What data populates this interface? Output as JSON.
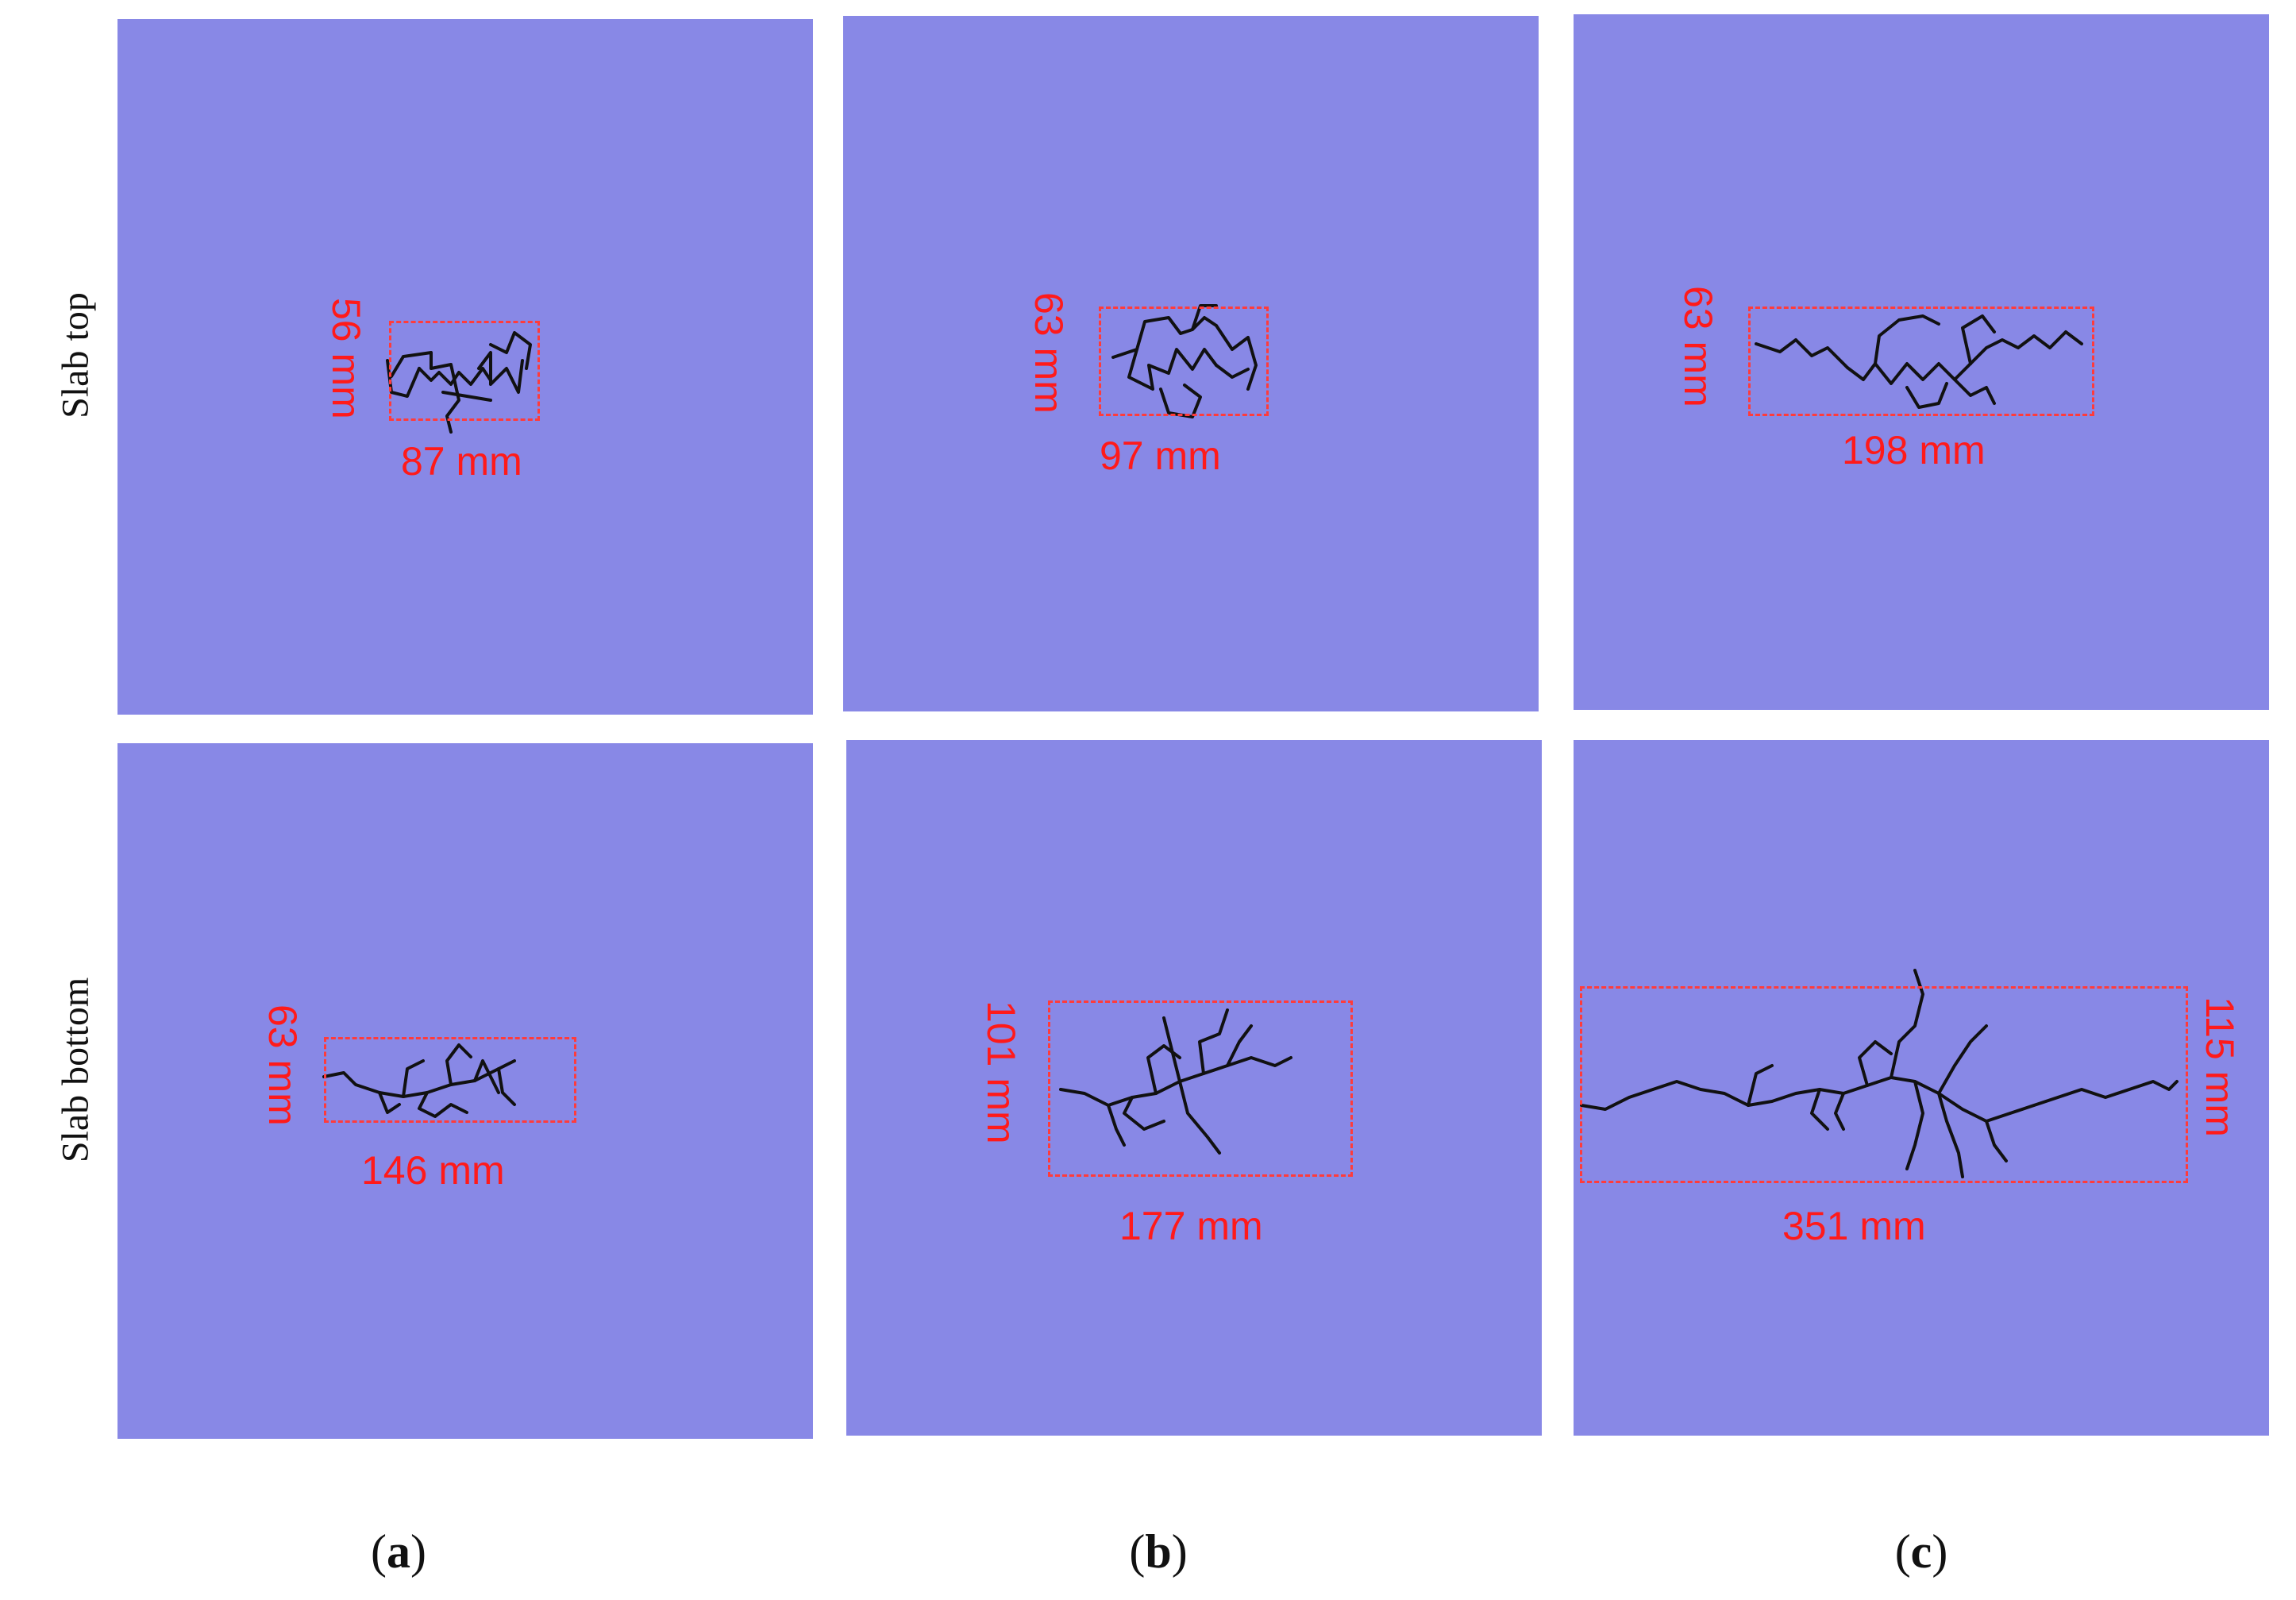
{
  "figure": {
    "row_labels": {
      "top": "Slab top",
      "bottom": "Slab bottom"
    },
    "column_labels": [
      {
        "letter": "a",
        "label": "(a)"
      },
      {
        "letter": "b",
        "label": "(b)"
      },
      {
        "letter": "c",
        "label": "(c)"
      }
    ],
    "panels": {
      "a_top": {
        "width_label": "87 mm",
        "height_label": "56 mm"
      },
      "b_top": {
        "width_label": "97 mm",
        "height_label": "63 mm"
      },
      "c_top": {
        "width_label": "198 mm",
        "height_label": "63 mm"
      },
      "a_bottom": {
        "width_label": "146 mm",
        "height_label": "63 mm"
      },
      "b_bottom": {
        "width_label": "177 mm",
        "height_label": "101 mm"
      },
      "c_bottom": {
        "width_label": "351 mm",
        "height_label": "115 mm"
      }
    },
    "colors": {
      "slab": "#8888e6",
      "crack": "#111111",
      "dimension": "#ff1a1a"
    }
  }
}
